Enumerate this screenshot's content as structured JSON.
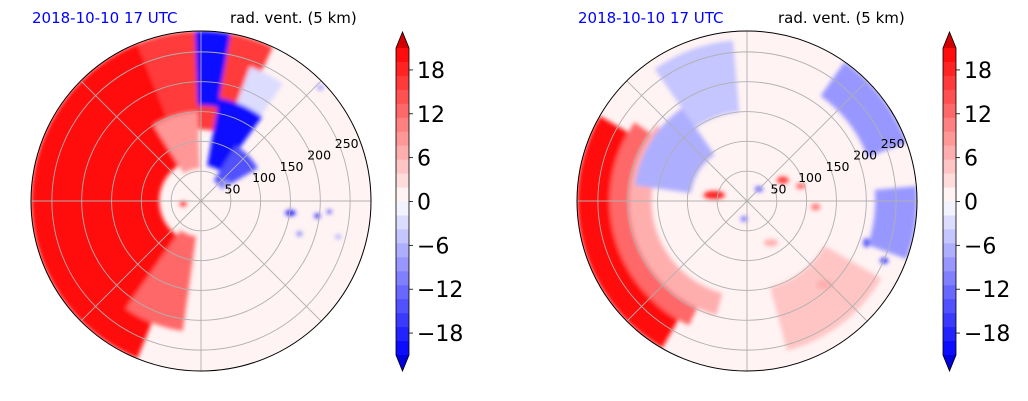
{
  "chart_data": [
    {
      "type": "heatmap",
      "projection": "polar",
      "title_left": "2018-10-10 17 UTC",
      "title_right": "rad. vent. (5 km)",
      "radial_ticks": [
        50,
        100,
        150,
        200,
        250
      ],
      "radial_tick_labels": [
        "50",
        "100",
        "150",
        "200",
        "250"
      ],
      "rmax": 285,
      "spokes_deg": [
        0,
        45,
        90,
        135,
        180,
        225,
        270,
        315
      ],
      "grid": true,
      "colorbar": {
        "ticks": [
          18,
          12,
          6,
          0,
          -6,
          -12,
          -18
        ],
        "tick_labels": [
          "18",
          "12",
          "6",
          "0",
          "−6",
          "−12",
          "−18"
        ],
        "vmin": -21,
        "vmax": 21,
        "levels": 22,
        "extend": "both",
        "cmap": "bwr"
      },
      "fields": [
        {
          "kind": "wedge",
          "value": 21,
          "a0": 112,
          "a1": 248,
          "r0": 70,
          "r1": 285
        },
        {
          "kind": "wedge",
          "value": 16,
          "a0": 65,
          "a1": 112,
          "r0": 120,
          "r1": 285
        },
        {
          "kind": "wedge",
          "value": 12,
          "a0": 235,
          "a1": 262,
          "r0": 60,
          "r1": 220
        },
        {
          "kind": "wedge",
          "value": -20,
          "a0": 80,
          "a1": 92,
          "r0": 160,
          "r1": 285
        },
        {
          "kind": "wedge",
          "value": -20,
          "a0": 54,
          "a1": 80,
          "r0": 60,
          "r1": 175
        },
        {
          "kind": "wedge",
          "value": -14,
          "a0": 30,
          "a1": 58,
          "r0": 40,
          "r1": 110
        },
        {
          "kind": "wedge",
          "value": 8,
          "a0": 92,
          "a1": 122,
          "r0": 55,
          "r1": 150
        },
        {
          "kind": "wedge",
          "value": -3,
          "a0": 55,
          "a1": 70,
          "r0": 175,
          "r1": 240
        },
        {
          "kind": "blob",
          "value": -19,
          "x": 150,
          "y": -20,
          "rx": 9,
          "ry": 5
        },
        {
          "kind": "blob",
          "value": -19,
          "x": 195,
          "y": -25,
          "rx": 5,
          "ry": 4
        },
        {
          "kind": "blob",
          "value": -19,
          "x": 215,
          "y": -18,
          "rx": 4,
          "ry": 3
        },
        {
          "kind": "blob",
          "value": -10,
          "x": 165,
          "y": -55,
          "rx": 5,
          "ry": 4
        },
        {
          "kind": "blob",
          "value": -6,
          "x": 200,
          "y": 190,
          "rx": 6,
          "ry": 5
        },
        {
          "kind": "blob",
          "value": -6,
          "x": 230,
          "y": -60,
          "rx": 5,
          "ry": 4
        },
        {
          "kind": "blob",
          "value": -8,
          "x": 40,
          "y": 30,
          "rx": 8,
          "ry": 6
        },
        {
          "kind": "blob",
          "value": 19,
          "x": -30,
          "y": -5,
          "rx": 6,
          "ry": 4
        }
      ]
    },
    {
      "type": "heatmap",
      "projection": "polar",
      "title_left": "2018-10-10 17 UTC",
      "title_right": "rad. vent. (5 km)",
      "radial_ticks": [
        50,
        100,
        150,
        200,
        250
      ],
      "radial_tick_labels": [
        "50",
        "100",
        "150",
        "200",
        "250"
      ],
      "rmax": 285,
      "spokes_deg": [
        0,
        45,
        90,
        135,
        180,
        225,
        270,
        315
      ],
      "grid": true,
      "colorbar": {
        "ticks": [
          18,
          12,
          6,
          0,
          -6,
          -12,
          -18
        ],
        "tick_labels": [
          "18",
          "12",
          "6",
          "0",
          "−6",
          "−12",
          "−18"
        ],
        "vmin": -21,
        "vmax": 21,
        "levels": 22,
        "extend": "both",
        "cmap": "bwr"
      },
      "fields": [
        {
          "kind": "wedge",
          "value": 21,
          "a0": 150,
          "a1": 240,
          "r0": 228,
          "r1": 285
        },
        {
          "kind": "wedge",
          "value": 13,
          "a0": 145,
          "a1": 245,
          "r0": 195,
          "r1": 230
        },
        {
          "kind": "wedge",
          "value": 7,
          "a0": 140,
          "a1": 255,
          "r0": 160,
          "r1": 198
        },
        {
          "kind": "wedge",
          "value": -7,
          "a0": 125,
          "a1": 172,
          "r0": 95,
          "r1": 190
        },
        {
          "kind": "wedge",
          "value": -5,
          "a0": 95,
          "a1": 125,
          "r0": 150,
          "r1": 270
        },
        {
          "kind": "wedge",
          "value": -9,
          "a0": 20,
          "a1": 55,
          "r0": 215,
          "r1": 285
        },
        {
          "kind": "wedge",
          "value": -8,
          "a0": -20,
          "a1": 5,
          "r0": 215,
          "r1": 285
        },
        {
          "kind": "wedge",
          "value": 5,
          "a0": 285,
          "a1": 330,
          "r0": 150,
          "r1": 260
        },
        {
          "kind": "blob",
          "value": 19,
          "x": -55,
          "y": 10,
          "rx": 18,
          "ry": 7
        },
        {
          "kind": "blob",
          "value": 16,
          "x": 60,
          "y": 35,
          "rx": 10,
          "ry": 6
        },
        {
          "kind": "blob",
          "value": 12,
          "x": 90,
          "y": 25,
          "rx": 8,
          "ry": 5
        },
        {
          "kind": "blob",
          "value": 10,
          "x": 115,
          "y": -10,
          "rx": 8,
          "ry": 6
        },
        {
          "kind": "blob",
          "value": -12,
          "x": 20,
          "y": 20,
          "rx": 7,
          "ry": 5
        },
        {
          "kind": "blob",
          "value": -10,
          "x": -5,
          "y": -30,
          "rx": 6,
          "ry": 5
        },
        {
          "kind": "blob",
          "value": -17,
          "x": 230,
          "y": -100,
          "rx": 7,
          "ry": 5
        },
        {
          "kind": "blob",
          "value": -15,
          "x": 200,
          "y": -70,
          "rx": 5,
          "ry": 8
        },
        {
          "kind": "blob",
          "value": 6,
          "x": 40,
          "y": -70,
          "rx": 12,
          "ry": 6
        },
        {
          "kind": "blob",
          "value": 6,
          "x": 130,
          "y": -140,
          "rx": 14,
          "ry": 8
        }
      ]
    }
  ]
}
